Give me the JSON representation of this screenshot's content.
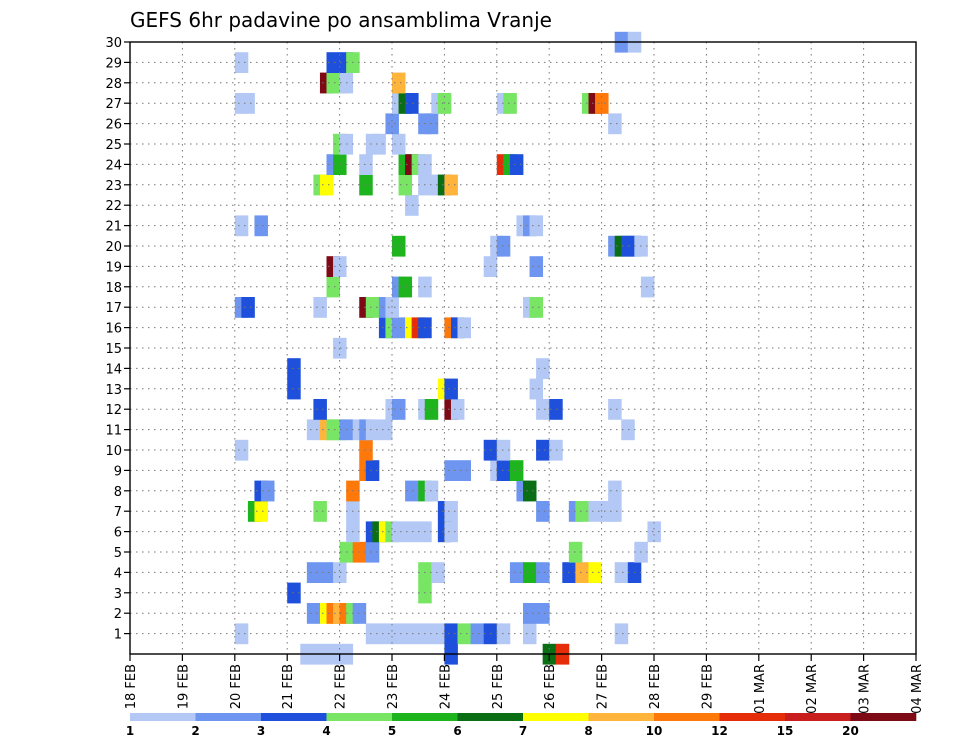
{
  "chart_data": {
    "type": "heatmap",
    "title": "GEFS 6hr padavine po ansamblima Vranje",
    "x_ticks": [
      "18 FEB",
      "19 FEB",
      "20 FEB",
      "21 FEB",
      "22 FEB",
      "23 FEB",
      "24 FEB",
      "25 FEB",
      "26 FEB",
      "27 FEB",
      "28 FEB",
      "29 FEB",
      "01 MAR",
      "02 MAR",
      "03 MAR",
      "04 MAR"
    ],
    "x_range_days": [
      0,
      15
    ],
    "x_step_hours": 6,
    "y_ticks": [
      "1",
      "2",
      "3",
      "4",
      "5",
      "6",
      "7",
      "8",
      "9",
      "10",
      "11",
      "12",
      "13",
      "14",
      "15",
      "16",
      "17",
      "18",
      "19",
      "20",
      "21",
      "22",
      "23",
      "24",
      "25",
      "26",
      "27",
      "28",
      "29",
      "30"
    ],
    "y_range": [
      0,
      30
    ],
    "grid": true,
    "colorbar": {
      "labels": [
        "1",
        "2",
        "3",
        "4",
        "5",
        "6",
        "7",
        "8",
        "10",
        "12",
        "15",
        "20"
      ],
      "colors": [
        "#b4c8f5",
        "#6e96f0",
        "#1e50dc",
        "#78e664",
        "#1eb41e",
        "#0a6e14",
        "#ffff00",
        "#ffb43c",
        "#ff780a",
        "#e62d0a",
        "#c81e1e",
        "#7d0a14"
      ]
    },
    "cells": [
      [
        13.0,
        0,
        "#b4c8f5"
      ],
      [
        14.0,
        0,
        "#b4c8f5"
      ],
      [
        15.0,
        0,
        "#b4c8f5"
      ],
      [
        16.0,
        0,
        "#b4c8f5"
      ],
      [
        24.0,
        0,
        "#1e50dc"
      ],
      [
        31.5,
        0,
        "#0a6e14"
      ],
      [
        32.5,
        0,
        "#e62d0a"
      ],
      [
        8.0,
        1,
        "#b4c8f5"
      ],
      [
        18.0,
        1,
        "#b4c8f5"
      ],
      [
        19.0,
        1,
        "#b4c8f5"
      ],
      [
        20.0,
        1,
        "#b4c8f5"
      ],
      [
        21.0,
        1,
        "#b4c8f5"
      ],
      [
        22.0,
        1,
        "#b4c8f5"
      ],
      [
        23.0,
        1,
        "#b4c8f5"
      ],
      [
        24.0,
        1,
        "#1e50dc"
      ],
      [
        25.0,
        1,
        "#78e664"
      ],
      [
        26.0,
        1,
        "#6e96f0"
      ],
      [
        27.0,
        1,
        "#1e50dc"
      ],
      [
        28.0,
        1,
        "#b4c8f5"
      ],
      [
        30.0,
        1,
        "#b4c8f5"
      ],
      [
        37.0,
        1,
        "#b4c8f5"
      ],
      [
        13.5,
        2,
        "#6e96f0"
      ],
      [
        14.5,
        2,
        "#ffff00"
      ],
      [
        15.0,
        2,
        "#ff780a"
      ],
      [
        15.5,
        2,
        "#ffb43c"
      ],
      [
        16.0,
        2,
        "#ff780a"
      ],
      [
        16.5,
        2,
        "#78e664"
      ],
      [
        17.0,
        2,
        "#6e96f0"
      ],
      [
        30.0,
        2,
        "#6e96f0"
      ],
      [
        31.0,
        2,
        "#6e96f0"
      ],
      [
        12.0,
        3,
        "#1e50dc"
      ],
      [
        22.0,
        3,
        "#78e664"
      ],
      [
        13.5,
        4,
        "#6e96f0"
      ],
      [
        14.5,
        4,
        "#6e96f0"
      ],
      [
        15.5,
        4,
        "#b4c8f5"
      ],
      [
        22.0,
        4,
        "#78e664"
      ],
      [
        23.0,
        4,
        "#b4c8f5"
      ],
      [
        29.0,
        4,
        "#6e96f0"
      ],
      [
        30.0,
        4,
        "#1eb41e"
      ],
      [
        31.0,
        4,
        "#6e96f0"
      ],
      [
        33.0,
        4,
        "#1e50dc"
      ],
      [
        34.0,
        4,
        "#ffb43c"
      ],
      [
        35.0,
        4,
        "#ffff00"
      ],
      [
        37.0,
        4,
        "#b4c8f5"
      ],
      [
        38.0,
        4,
        "#1e50dc"
      ],
      [
        16.0,
        5,
        "#78e664"
      ],
      [
        17.0,
        5,
        "#ff780a"
      ],
      [
        18.0,
        5,
        "#6e96f0"
      ],
      [
        33.5,
        5,
        "#78e664"
      ],
      [
        38.5,
        5,
        "#b4c8f5"
      ],
      [
        16.5,
        6,
        "#b4c8f5"
      ],
      [
        18.0,
        6,
        "#1e50dc"
      ],
      [
        18.5,
        6,
        "#0a6e14"
      ],
      [
        19.0,
        6,
        "#ffff00"
      ],
      [
        19.5,
        6,
        "#78e664"
      ],
      [
        20.0,
        6,
        "#b4c8f5"
      ],
      [
        21.0,
        6,
        "#b4c8f5"
      ],
      [
        22.0,
        6,
        "#b4c8f5"
      ],
      [
        23.5,
        6,
        "#1e50dc"
      ],
      [
        24.0,
        6,
        "#b4c8f5"
      ],
      [
        39.5,
        6,
        "#b4c8f5"
      ],
      [
        9.0,
        7,
        "#1eb41e"
      ],
      [
        9.5,
        7,
        "#ffff00"
      ],
      [
        14.0,
        7,
        "#78e664"
      ],
      [
        16.5,
        7,
        "#b4c8f5"
      ],
      [
        23.5,
        7,
        "#1e50dc"
      ],
      [
        24.0,
        7,
        "#b4c8f5"
      ],
      [
        31.0,
        7,
        "#6e96f0"
      ],
      [
        33.5,
        7,
        "#6e96f0"
      ],
      [
        34.0,
        7,
        "#78e664"
      ],
      [
        35.0,
        7,
        "#b4c8f5"
      ],
      [
        36.0,
        7,
        "#b4c8f5"
      ],
      [
        36.5,
        7,
        "#b4c8f5"
      ],
      [
        9.5,
        8,
        "#1e50dc"
      ],
      [
        10.0,
        8,
        "#6e96f0"
      ],
      [
        16.5,
        8,
        "#ff780a"
      ],
      [
        21.0,
        8,
        "#6e96f0"
      ],
      [
        22.0,
        8,
        "#1eb41e"
      ],
      [
        22.5,
        8,
        "#b4c8f5"
      ],
      [
        29.5,
        8,
        "#6e96f0"
      ],
      [
        30.0,
        8,
        "#0a6e14"
      ],
      [
        36.5,
        8,
        "#b4c8f5"
      ],
      [
        17.5,
        9,
        "#ff780a"
      ],
      [
        18.0,
        9,
        "#1e50dc"
      ],
      [
        24.0,
        9,
        "#6e96f0"
      ],
      [
        25.0,
        9,
        "#6e96f0"
      ],
      [
        27.5,
        9,
        "#b4c8f5"
      ],
      [
        28.0,
        9,
        "#1e50dc"
      ],
      [
        29.0,
        9,
        "#1eb41e"
      ],
      [
        8.0,
        10,
        "#b4c8f5"
      ],
      [
        17.5,
        10,
        "#ff780a"
      ],
      [
        27.0,
        10,
        "#1e50dc"
      ],
      [
        28.0,
        10,
        "#b4c8f5"
      ],
      [
        31.0,
        10,
        "#1e50dc"
      ],
      [
        32.0,
        10,
        "#b4c8f5"
      ],
      [
        13.5,
        11,
        "#b4c8f5"
      ],
      [
        14.5,
        11,
        "#ffb43c"
      ],
      [
        15.0,
        11,
        "#78e664"
      ],
      [
        15.5,
        11,
        "#78e664"
      ],
      [
        16.0,
        11,
        "#6e96f0"
      ],
      [
        17.0,
        11,
        "#b4c8f5"
      ],
      [
        17.5,
        11,
        "#6e96f0"
      ],
      [
        18.0,
        11,
        "#b4c8f5"
      ],
      [
        19.0,
        11,
        "#b4c8f5"
      ],
      [
        37.5,
        11,
        "#b4c8f5"
      ],
      [
        14.0,
        12,
        "#1e50dc"
      ],
      [
        19.5,
        12,
        "#b4c8f5"
      ],
      [
        20.0,
        12,
        "#6e96f0"
      ],
      [
        22.0,
        12,
        "#b4c8f5"
      ],
      [
        22.5,
        12,
        "#1eb41e"
      ],
      [
        24.0,
        12,
        "#7d0a14"
      ],
      [
        24.5,
        12,
        "#b4c8f5"
      ],
      [
        31.0,
        12,
        "#b4c8f5"
      ],
      [
        32.0,
        12,
        "#1e50dc"
      ],
      [
        36.5,
        12,
        "#b4c8f5"
      ],
      [
        12.0,
        13,
        "#1e50dc"
      ],
      [
        23.5,
        13,
        "#ffff00"
      ],
      [
        24.0,
        13,
        "#1e50dc"
      ],
      [
        30.5,
        13,
        "#b4c8f5"
      ],
      [
        12.0,
        14,
        "#1e50dc"
      ],
      [
        31.0,
        14,
        "#b4c8f5"
      ],
      [
        15.5,
        15,
        "#b4c8f5"
      ],
      [
        19.0,
        16,
        "#1e50dc"
      ],
      [
        19.5,
        16,
        "#78e664"
      ],
      [
        20.0,
        16,
        "#6e96f0"
      ],
      [
        21.0,
        16,
        "#ffff00"
      ],
      [
        21.5,
        16,
        "#e62d0a"
      ],
      [
        22.0,
        16,
        "#1e50dc"
      ],
      [
        24.0,
        16,
        "#ff780a"
      ],
      [
        24.5,
        16,
        "#1e50dc"
      ],
      [
        25.0,
        16,
        "#b4c8f5"
      ],
      [
        8.0,
        17,
        "#6e96f0"
      ],
      [
        8.5,
        17,
        "#1e50dc"
      ],
      [
        14.0,
        17,
        "#b4c8f5"
      ],
      [
        17.5,
        17,
        "#7d0a14"
      ],
      [
        18.0,
        17,
        "#78e664"
      ],
      [
        19.0,
        17,
        "#6e96f0"
      ],
      [
        19.5,
        17,
        "#b4c8f5"
      ],
      [
        30.0,
        17,
        "#b4c8f5"
      ],
      [
        30.5,
        17,
        "#78e664"
      ],
      [
        15.0,
        18,
        "#78e664"
      ],
      [
        20.0,
        18,
        "#6e96f0"
      ],
      [
        20.5,
        18,
        "#1eb41e"
      ],
      [
        22.0,
        18,
        "#b4c8f5"
      ],
      [
        39.0,
        18,
        "#b4c8f5"
      ],
      [
        15.0,
        19,
        "#7d0a14"
      ],
      [
        15.5,
        19,
        "#b4c8f5"
      ],
      [
        27.0,
        19,
        "#b4c8f5"
      ],
      [
        30.5,
        19,
        "#6e96f0"
      ],
      [
        20.0,
        20,
        "#1eb41e"
      ],
      [
        27.5,
        20,
        "#b4c8f5"
      ],
      [
        28.0,
        20,
        "#6e96f0"
      ],
      [
        36.5,
        20,
        "#6e96f0"
      ],
      [
        37.0,
        20,
        "#0a6e14"
      ],
      [
        37.5,
        20,
        "#1e50dc"
      ],
      [
        38.0,
        20,
        "#1e50dc"
      ],
      [
        38.5,
        20,
        "#b4c8f5"
      ],
      [
        8.0,
        21,
        "#b4c8f5"
      ],
      [
        9.5,
        21,
        "#6e96f0"
      ],
      [
        29.5,
        21,
        "#b4c8f5"
      ],
      [
        30.0,
        21,
        "#6e96f0"
      ],
      [
        30.5,
        21,
        "#b4c8f5"
      ],
      [
        21.0,
        22,
        "#b4c8f5"
      ],
      [
        14.0,
        23,
        "#78e664"
      ],
      [
        14.5,
        23,
        "#ffff00"
      ],
      [
        17.5,
        23,
        "#1eb41e"
      ],
      [
        20.5,
        23,
        "#78e664"
      ],
      [
        22.0,
        23,
        "#b4c8f5"
      ],
      [
        23.0,
        23,
        "#b4c8f5"
      ],
      [
        23.5,
        23,
        "#0a6e14"
      ],
      [
        24.0,
        23,
        "#ffb43c"
      ],
      [
        15.0,
        24,
        "#6e96f0"
      ],
      [
        15.5,
        24,
        "#1eb41e"
      ],
      [
        17.5,
        24,
        "#b4c8f5"
      ],
      [
        20.5,
        24,
        "#1eb41e"
      ],
      [
        21.0,
        24,
        "#7d0a14"
      ],
      [
        21.5,
        24,
        "#78e664"
      ],
      [
        22.0,
        24,
        "#b4c8f5"
      ],
      [
        28.0,
        24,
        "#e62d0a"
      ],
      [
        28.5,
        24,
        "#1eb41e"
      ],
      [
        29.0,
        24,
        "#1e50dc"
      ],
      [
        15.5,
        25,
        "#78e664"
      ],
      [
        16.0,
        25,
        "#b4c8f5"
      ],
      [
        18.0,
        25,
        "#b4c8f5"
      ],
      [
        18.5,
        25,
        "#b4c8f5"
      ],
      [
        20.0,
        25,
        "#b4c8f5"
      ],
      [
        19.5,
        26,
        "#6e96f0"
      ],
      [
        22.0,
        26,
        "#6e96f0"
      ],
      [
        22.5,
        26,
        "#6e96f0"
      ],
      [
        36.5,
        26,
        "#b4c8f5"
      ],
      [
        8.0,
        27,
        "#b4c8f5"
      ],
      [
        8.5,
        27,
        "#b4c8f5"
      ],
      [
        20.0,
        27,
        "#b4c8f5"
      ],
      [
        20.5,
        27,
        "#0a6e14"
      ],
      [
        21.0,
        27,
        "#1e50dc"
      ],
      [
        23.0,
        27,
        "#b4c8f5"
      ],
      [
        23.5,
        27,
        "#78e664"
      ],
      [
        28.0,
        27,
        "#b4c8f5"
      ],
      [
        28.5,
        27,
        "#78e664"
      ],
      [
        34.5,
        27,
        "#78e664"
      ],
      [
        35.0,
        27,
        "#7d0a14"
      ],
      [
        35.5,
        27,
        "#ff780a"
      ],
      [
        14.5,
        28,
        "#7d0a14"
      ],
      [
        15.0,
        28,
        "#78e664"
      ],
      [
        15.5,
        28,
        "#78e664"
      ],
      [
        16.0,
        28,
        "#b4c8f5"
      ],
      [
        20.0,
        28,
        "#ffb43c"
      ],
      [
        8.0,
        29,
        "#b4c8f5"
      ],
      [
        15.0,
        29,
        "#1e50dc"
      ],
      [
        16.0,
        29,
        "#1e50dc"
      ],
      [
        16.5,
        29,
        "#78e664"
      ],
      [
        37.0,
        30,
        "#6e96f0"
      ],
      [
        38.0,
        30,
        "#b4c8f5"
      ]
    ]
  }
}
